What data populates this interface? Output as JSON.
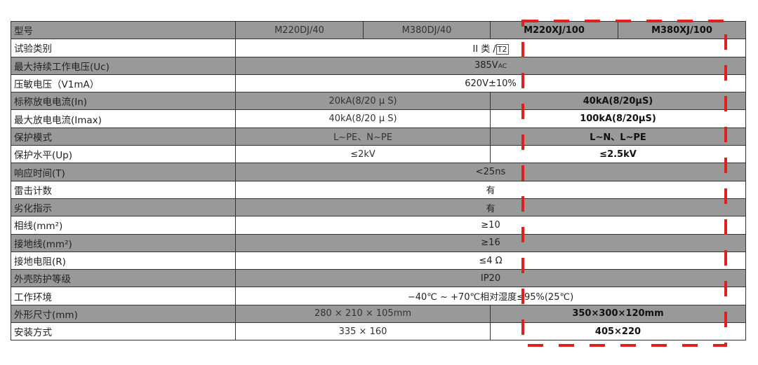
{
  "header": {
    "label": "型号",
    "models": [
      "M220DJ/40",
      "M380DJ/40",
      "M220XJ/100",
      "M380XJ/100"
    ]
  },
  "rows": [
    {
      "label": "试验类别",
      "shaded": false,
      "span": "II 类 /",
      "boxed": "T2"
    },
    {
      "label": "最大持续工作电压(Uc)",
      "shaded": true,
      "span": "385V",
      "sub": "AC"
    },
    {
      "label": "压敏电压（V1mA）",
      "shaded": false,
      "span": "620V±10%"
    },
    {
      "label": "标称放电电流(In)",
      "shaded": true,
      "left": "20kA(8/20 μ S)",
      "right": "40kA(8/20μS)"
    },
    {
      "label": "最大放电电流(Imax)",
      "shaded": false,
      "left": "40kA(8/20 μ S)",
      "right": "100kA(8/20μS)"
    },
    {
      "label": "保护模式",
      "shaded": true,
      "left": "L~PE、N~PE",
      "right": "L~N、L~PE"
    },
    {
      "label": "保护水平(Up)",
      "shaded": false,
      "left": "≤2kV",
      "right": "≤2.5kV"
    },
    {
      "label": "响应时间(T)",
      "shaded": true,
      "span": "<25ns"
    },
    {
      "label": "雷击计数",
      "shaded": false,
      "span": "有"
    },
    {
      "label": "劣化指示",
      "shaded": true,
      "span": "有"
    },
    {
      "label": "相线(mm²)",
      "shaded": false,
      "span": "≥10"
    },
    {
      "label": "接地线(mm²)",
      "shaded": true,
      "span": "≥16"
    },
    {
      "label": "接地电阻(R)",
      "shaded": false,
      "span": "≤4 Ω"
    },
    {
      "label": "外壳防护等级",
      "shaded": true,
      "span": "IP20"
    },
    {
      "label": "工作环境",
      "shaded": false,
      "span": "−40℃ ~ +70℃相对湿度≤95%(25℃)"
    },
    {
      "label": "外形尺寸(mm)",
      "shaded": true,
      "left": "280 × 210 × 105mm",
      "right": "350×300×120mm"
    },
    {
      "label": "安装方式",
      "shaded": false,
      "left": "335 × 160",
      "right": "405×220"
    }
  ],
  "colors": {
    "shaded": "#999999",
    "highlight": "#e02020"
  }
}
